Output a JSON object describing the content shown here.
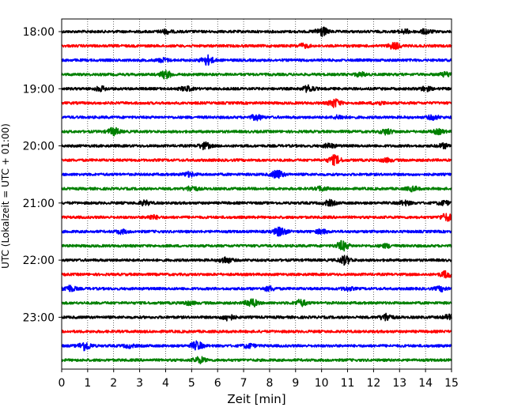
{
  "chart_data": {
    "type": "line",
    "title": "",
    "xlabel": "Zeit  [min]",
    "ylabel": "UTC (Lokalzeit = UTC + 01:00)",
    "xlim": [
      0,
      15
    ],
    "x_ticks": [
      "0",
      "1",
      "2",
      "3",
      "4",
      "5",
      "6",
      "7",
      "8",
      "9",
      "10",
      "11",
      "12",
      "13",
      "14",
      "15"
    ],
    "y_tick_labels": [
      "18:00",
      "19:00",
      "20:00",
      "21:00",
      "22:00",
      "23:00"
    ],
    "vertical_grid": true,
    "grid_style": "dotted",
    "trace_colors": [
      "#000000",
      "#ff0000",
      "#0000ff",
      "#008000"
    ],
    "series": [
      {
        "start": "18:00",
        "color": "#000000",
        "bursts": [
          [
            4.0,
            0.35
          ],
          [
            10.0,
            0.9
          ],
          [
            13.2,
            0.35
          ],
          [
            14.0,
            0.4
          ]
        ]
      },
      {
        "start": "18:15",
        "color": "#ff0000",
        "bursts": [
          [
            9.3,
            0.35
          ],
          [
            12.8,
            0.6
          ]
        ]
      },
      {
        "start": "18:30",
        "color": "#0000ff",
        "bursts": [
          [
            5.6,
            0.9
          ],
          [
            3.9,
            0.35
          ]
        ]
      },
      {
        "start": "18:45",
        "color": "#008000",
        "bursts": [
          [
            4.0,
            0.7
          ],
          [
            11.5,
            0.35
          ],
          [
            14.8,
            0.4
          ]
        ]
      },
      {
        "start": "19:00",
        "color": "#000000",
        "bursts": [
          [
            1.5,
            0.4
          ],
          [
            4.8,
            0.4
          ],
          [
            9.5,
            0.6
          ],
          [
            14.0,
            0.4
          ]
        ]
      },
      {
        "start": "19:15",
        "color": "#ff0000",
        "bursts": [
          [
            10.5,
            0.8
          ],
          [
            12.2,
            0.3
          ]
        ]
      },
      {
        "start": "19:30",
        "color": "#0000ff",
        "bursts": [
          [
            7.5,
            0.5
          ],
          [
            10.7,
            0.35
          ],
          [
            14.3,
            0.4
          ]
        ]
      },
      {
        "start": "19:45",
        "color": "#008000",
        "bursts": [
          [
            2.0,
            0.7
          ],
          [
            12.5,
            0.5
          ],
          [
            14.5,
            0.4
          ]
        ]
      },
      {
        "start": "20:00",
        "color": "#000000",
        "bursts": [
          [
            5.5,
            0.6
          ],
          [
            10.3,
            0.4
          ],
          [
            14.7,
            0.4
          ]
        ]
      },
      {
        "start": "20:15",
        "color": "#ff0000",
        "bursts": [
          [
            10.5,
            0.9
          ],
          [
            12.5,
            0.3
          ]
        ]
      },
      {
        "start": "20:30",
        "color": "#0000ff",
        "bursts": [
          [
            8.3,
            0.8
          ],
          [
            4.9,
            0.4
          ]
        ]
      },
      {
        "start": "20:45",
        "color": "#008000",
        "bursts": [
          [
            5.0,
            0.5
          ],
          [
            10.0,
            0.4
          ],
          [
            13.5,
            0.4
          ]
        ]
      },
      {
        "start": "21:00",
        "color": "#000000",
        "bursts": [
          [
            3.2,
            0.4
          ],
          [
            10.3,
            0.5
          ],
          [
            13.2,
            0.4
          ],
          [
            14.7,
            0.4
          ]
        ]
      },
      {
        "start": "21:15",
        "color": "#ff0000",
        "bursts": [
          [
            3.5,
            0.35
          ],
          [
            14.8,
            0.7
          ]
        ]
      },
      {
        "start": "21:30",
        "color": "#0000ff",
        "bursts": [
          [
            8.4,
            0.9
          ],
          [
            10.0,
            0.4
          ],
          [
            2.3,
            0.35
          ]
        ]
      },
      {
        "start": "21:45",
        "color": "#008000",
        "bursts": [
          [
            10.8,
            0.9
          ],
          [
            12.5,
            0.3
          ]
        ]
      },
      {
        "start": "22:00",
        "color": "#000000",
        "bursts": [
          [
            6.3,
            0.6
          ],
          [
            10.9,
            0.8
          ]
        ]
      },
      {
        "start": "22:15",
        "color": "#ff0000",
        "bursts": [
          [
            14.8,
            0.6
          ]
        ]
      },
      {
        "start": "22:30",
        "color": "#0000ff",
        "bursts": [
          [
            0.3,
            0.6
          ],
          [
            8.0,
            0.4
          ],
          [
            11.0,
            0.3
          ],
          [
            14.6,
            0.4
          ]
        ]
      },
      {
        "start": "22:45",
        "color": "#008000",
        "bursts": [
          [
            7.3,
            0.8
          ],
          [
            9.2,
            0.6
          ],
          [
            4.9,
            0.3
          ]
        ]
      },
      {
        "start": "23:00",
        "color": "#000000",
        "bursts": [
          [
            6.4,
            0.6
          ],
          [
            12.5,
            0.7
          ],
          [
            14.9,
            0.4
          ]
        ]
      },
      {
        "start": "23:15",
        "color": "#ff0000",
        "bursts": []
      },
      {
        "start": "23:30",
        "color": "#0000ff",
        "bursts": [
          [
            0.9,
            0.9
          ],
          [
            5.2,
            0.8
          ],
          [
            7.2,
            0.4
          ],
          [
            2.6,
            0.3
          ]
        ]
      },
      {
        "start": "23:45",
        "color": "#008000",
        "bursts": [
          [
            5.3,
            0.6
          ]
        ]
      }
    ]
  }
}
